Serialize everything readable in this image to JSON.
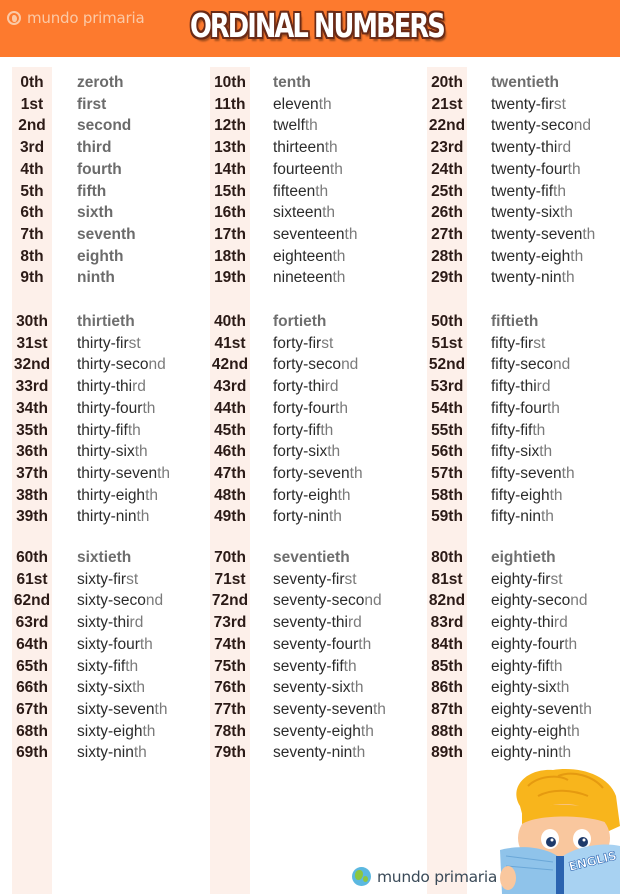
{
  "header": {
    "brand": "mundo primaria",
    "title": "ORDINAL NUMBERS",
    "background_color": "#fd7a2e"
  },
  "footer": {
    "brand": "mundo primaria",
    "illustration": "boy-reading-english-book",
    "book_label": "ENGLISH"
  },
  "colors": {
    "stripe": "#fdf0ea",
    "number_text": "#2b1a16",
    "word_text": "#2b2b2b",
    "suffix_text": "#7a7a7a"
  },
  "groups": [
    {
      "columns": [
        {
          "rows": [
            {
              "num": "0th",
              "base": "zeroth",
              "suf": "",
              "style": "grey"
            },
            {
              "num": "1st",
              "base": "first",
              "suf": "",
              "style": "grey"
            },
            {
              "num": "2nd",
              "base": "second",
              "suf": "",
              "style": "grey"
            },
            {
              "num": "3rd",
              "base": "third",
              "suf": "",
              "style": "grey"
            },
            {
              "num": "4th",
              "base": "fourth",
              "suf": "",
              "style": "grey"
            },
            {
              "num": "5th",
              "base": "fifth",
              "suf": "",
              "style": "grey"
            },
            {
              "num": "6th",
              "base": "sixth",
              "suf": "",
              "style": "grey"
            },
            {
              "num": "7th",
              "base": "seventh",
              "suf": "",
              "style": "grey"
            },
            {
              "num": "8th",
              "base": "eighth",
              "suf": "",
              "style": "grey"
            },
            {
              "num": "9th",
              "base": "ninth",
              "suf": "",
              "style": "grey"
            }
          ]
        },
        {
          "rows": [
            {
              "num": "10th",
              "base": "tenth",
              "suf": "",
              "style": "tens"
            },
            {
              "num": "11th",
              "base": "eleven",
              "suf": "th",
              "style": ""
            },
            {
              "num": "12th",
              "base": "twelf",
              "suf": "th",
              "style": ""
            },
            {
              "num": "13th",
              "base": "thirteen",
              "suf": "th",
              "style": ""
            },
            {
              "num": "14th",
              "base": "fourteen",
              "suf": "th",
              "style": ""
            },
            {
              "num": "15th",
              "base": "fifteen",
              "suf": "th",
              "style": ""
            },
            {
              "num": "16th",
              "base": "sixteen",
              "suf": "th",
              "style": ""
            },
            {
              "num": "17th",
              "base": "seventeen",
              "suf": "th",
              "style": ""
            },
            {
              "num": "18th",
              "base": "eighteen",
              "suf": "th",
              "style": ""
            },
            {
              "num": "19th",
              "base": "nineteen",
              "suf": "th",
              "style": ""
            }
          ]
        },
        {
          "rows": [
            {
              "num": "20th",
              "base": "twentieth",
              "suf": "",
              "style": "tens"
            },
            {
              "num": "21st",
              "base": "twenty-fir",
              "suf": "st",
              "style": ""
            },
            {
              "num": "22nd",
              "base": "twenty-seco",
              "suf": "nd",
              "style": ""
            },
            {
              "num": "23rd",
              "base": "twenty-thi",
              "suf": "rd",
              "style": ""
            },
            {
              "num": "24th",
              "base": "twenty-four",
              "suf": "th",
              "style": ""
            },
            {
              "num": "25th",
              "base": "twenty-fif",
              "suf": "th",
              "style": ""
            },
            {
              "num": "26th",
              "base": "twenty-six",
              "suf": "th",
              "style": ""
            },
            {
              "num": "27th",
              "base": "twenty-seven",
              "suf": "th",
              "style": ""
            },
            {
              "num": "28th",
              "base": "twenty-eigh",
              "suf": "th",
              "style": ""
            },
            {
              "num": "29th",
              "base": "twenty-nin",
              "suf": "th",
              "style": ""
            }
          ]
        }
      ]
    },
    {
      "columns": [
        {
          "rows": [
            {
              "num": "30th",
              "base": "thirtieth",
              "suf": "",
              "style": "tens"
            },
            {
              "num": "31st",
              "base": "thirty-fir",
              "suf": "st",
              "style": ""
            },
            {
              "num": "32nd",
              "base": "thirty-seco",
              "suf": "nd",
              "style": ""
            },
            {
              "num": "33rd",
              "base": "thirty-thi",
              "suf": "rd",
              "style": ""
            },
            {
              "num": "34th",
              "base": "thirty-four",
              "suf": "th",
              "style": ""
            },
            {
              "num": "35th",
              "base": "thirty-fif",
              "suf": "th",
              "style": ""
            },
            {
              "num": "36th",
              "base": "thirty-six",
              "suf": "th",
              "style": ""
            },
            {
              "num": "37th",
              "base": "thirty-seven",
              "suf": "th",
              "style": ""
            },
            {
              "num": "38th",
              "base": "thirty-eigh",
              "suf": "th",
              "style": ""
            },
            {
              "num": "39th",
              "base": "thirty-nin",
              "suf": "th",
              "style": ""
            }
          ]
        },
        {
          "rows": [
            {
              "num": "40th",
              "base": "fortieth",
              "suf": "",
              "style": "tens"
            },
            {
              "num": "41st",
              "base": "forty-fir",
              "suf": "st",
              "style": ""
            },
            {
              "num": "42nd",
              "base": "forty-seco",
              "suf": "nd",
              "style": ""
            },
            {
              "num": "43rd",
              "base": "forty-thi",
              "suf": "rd",
              "style": ""
            },
            {
              "num": "44th",
              "base": "forty-four",
              "suf": "th",
              "style": ""
            },
            {
              "num": "45th",
              "base": "forty-fif",
              "suf": "th",
              "style": ""
            },
            {
              "num": "46th",
              "base": "forty-six",
              "suf": "th",
              "style": ""
            },
            {
              "num": "47th",
              "base": "forty-seven",
              "suf": "th",
              "style": ""
            },
            {
              "num": "48th",
              "base": "forty-eigh",
              "suf": "th",
              "style": ""
            },
            {
              "num": "49th",
              "base": "forty-nin",
              "suf": "th",
              "style": ""
            }
          ]
        },
        {
          "rows": [
            {
              "num": "50th",
              "base": "fiftieth",
              "suf": "",
              "style": "tens"
            },
            {
              "num": "51st",
              "base": "fifty-fir",
              "suf": "st",
              "style": ""
            },
            {
              "num": "52nd",
              "base": "fifty-seco",
              "suf": "nd",
              "style": ""
            },
            {
              "num": "53rd",
              "base": "fifty-thi",
              "suf": "rd",
              "style": ""
            },
            {
              "num": "54th",
              "base": "fifty-four",
              "suf": "th",
              "style": ""
            },
            {
              "num": "55th",
              "base": "fifty-fif",
              "suf": "th",
              "style": ""
            },
            {
              "num": "56th",
              "base": "fifty-six",
              "suf": "th",
              "style": ""
            },
            {
              "num": "57th",
              "base": "fifty-seven",
              "suf": "th",
              "style": ""
            },
            {
              "num": "58th",
              "base": "fifty-eigh",
              "suf": "th",
              "style": ""
            },
            {
              "num": "59th",
              "base": "fifty-nin",
              "suf": "th",
              "style": ""
            }
          ]
        }
      ]
    },
    {
      "columns": [
        {
          "rows": [
            {
              "num": "60th",
              "base": "sixtieth",
              "suf": "",
              "style": "tens"
            },
            {
              "num": "61st",
              "base": "sixty-fir",
              "suf": "st",
              "style": ""
            },
            {
              "num": "62nd",
              "base": "sixty-seco",
              "suf": "nd",
              "style": ""
            },
            {
              "num": "63rd",
              "base": "sixty-thi",
              "suf": "rd",
              "style": ""
            },
            {
              "num": "64th",
              "base": "sixty-four",
              "suf": "th",
              "style": ""
            },
            {
              "num": "65th",
              "base": "sixty-fif",
              "suf": "th",
              "style": ""
            },
            {
              "num": "66th",
              "base": "sixty-six",
              "suf": "th",
              "style": ""
            },
            {
              "num": "67th",
              "base": "sixty-seven",
              "suf": "th",
              "style": ""
            },
            {
              "num": "68th",
              "base": "sixty-eigh",
              "suf": "th",
              "style": ""
            },
            {
              "num": "69th",
              "base": "sixty-nin",
              "suf": "th",
              "style": ""
            }
          ]
        },
        {
          "rows": [
            {
              "num": "70th",
              "base": "seventieth",
              "suf": "",
              "style": "tens"
            },
            {
              "num": "71st",
              "base": "seventy-fir",
              "suf": "st",
              "style": ""
            },
            {
              "num": "72nd",
              "base": "seventy-seco",
              "suf": "nd",
              "style": ""
            },
            {
              "num": "73rd",
              "base": "seventy-thi",
              "suf": "rd",
              "style": ""
            },
            {
              "num": "74th",
              "base": "seventy-four",
              "suf": "th",
              "style": ""
            },
            {
              "num": "75th",
              "base": "seventy-fif",
              "suf": "th",
              "style": ""
            },
            {
              "num": "76th",
              "base": "seventy-six",
              "suf": "th",
              "style": ""
            },
            {
              "num": "77th",
              "base": "seventy-seven",
              "suf": "th",
              "style": ""
            },
            {
              "num": "78th",
              "base": "seventy-eigh",
              "suf": "th",
              "style": ""
            },
            {
              "num": "79th",
              "base": "seventy-nin",
              "suf": "th",
              "style": ""
            }
          ]
        },
        {
          "rows": [
            {
              "num": "80th",
              "base": "eightieth",
              "suf": "",
              "style": "tens"
            },
            {
              "num": "81st",
              "base": "eighty-fir",
              "suf": "st",
              "style": ""
            },
            {
              "num": "82nd",
              "base": "eighty-seco",
              "suf": "nd",
              "style": ""
            },
            {
              "num": "83rd",
              "base": "eighty-thi",
              "suf": "rd",
              "style": ""
            },
            {
              "num": "84th",
              "base": "eighty-four",
              "suf": "th",
              "style": ""
            },
            {
              "num": "85th",
              "base": "eighty-fif",
              "suf": "th",
              "style": ""
            },
            {
              "num": "86th",
              "base": "eighty-six",
              "suf": "th",
              "style": ""
            },
            {
              "num": "87th",
              "base": "eighty-seven",
              "suf": "th",
              "style": ""
            },
            {
              "num": "88th",
              "base": "eighty-eigh",
              "suf": "th",
              "style": ""
            },
            {
              "num": "89th",
              "base": "eighty-nin",
              "suf": "th",
              "style": ""
            }
          ]
        }
      ]
    }
  ]
}
